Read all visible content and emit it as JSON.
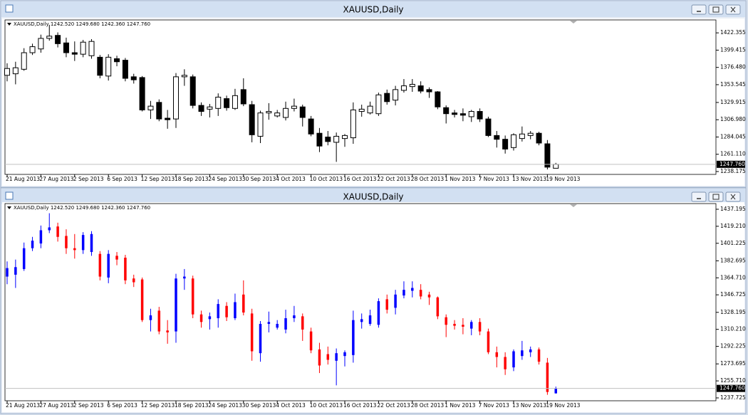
{
  "chart_data": [
    {
      "type": "candlestick",
      "title": "XAUUSD,Daily",
      "info": "XAUUSD,Daily  1242.520 1249.680 1242.360 1247.760",
      "up_color": "#ffffff",
      "down_color": "#000000",
      "categories": [
        "21 Aug 2013",
        null,
        null,
        null,
        "27 Aug 2013",
        null,
        null,
        null,
        "2 Sep 2013",
        null,
        null,
        null,
        "6 Sep 2013",
        null,
        null,
        null,
        "12 Sep 2013",
        null,
        null,
        null,
        "18 Sep 2013",
        null,
        null,
        null,
        "24 Sep 2013",
        null,
        null,
        null,
        "30 Sep 2013",
        null,
        null,
        null,
        "4 Oct 2013",
        null,
        null,
        null,
        "10 Oct 2013",
        null,
        null,
        null,
        "16 Oct 2013",
        null,
        null,
        null,
        "22 Oct 2013",
        null,
        null,
        null,
        "28 Oct 2013",
        null,
        null,
        null,
        "1 Nov 2013",
        null,
        null,
        null,
        "7 Nov 2013",
        null,
        null,
        null,
        "13 Nov 2013",
        null,
        null,
        null,
        "19 Nov 2013",
        null
      ],
      "open": [
        1366,
        1368,
        1374,
        1396,
        1401,
        1415,
        1419,
        1409,
        1396,
        1394,
        1392,
        1390,
        1365,
        1388,
        1386,
        1364,
        1363,
        1320,
        1330,
        1309,
        1308,
        1364,
        1364,
        1326,
        1321,
        1322,
        1335,
        1322,
        1347,
        1327,
        1285,
        1316,
        1312,
        1310,
        1322,
        1324,
        1308,
        1289,
        1284,
        1277,
        1282,
        1283,
        1318,
        1316,
        1315,
        1342,
        1333,
        1346,
        1351,
        1352,
        1347,
        1344,
        1323,
        1316,
        1315,
        1311,
        1318,
        1308,
        1286,
        1281,
        1270,
        1282,
        1286,
        1289,
        1275,
        1242.52
      ],
      "high": [
        1382,
        1384,
        1402,
        1408,
        1420,
        1433,
        1423,
        1416,
        1411,
        1413,
        1414,
        1393,
        1394,
        1392,
        1389,
        1368,
        1365,
        1332,
        1334,
        1320,
        1369,
        1374,
        1367,
        1330,
        1328,
        1342,
        1339,
        1348,
        1362,
        1332,
        1319,
        1329,
        1320,
        1331,
        1335,
        1327,
        1312,
        1296,
        1292,
        1290,
        1288,
        1330,
        1327,
        1331,
        1343,
        1347,
        1352,
        1361,
        1361,
        1358,
        1350,
        1345,
        1326,
        1320,
        1322,
        1320,
        1322,
        1311,
        1292,
        1286,
        1289,
        1298,
        1292,
        1291,
        1280,
        1249.68
      ],
      "low": [
        1358,
        1354,
        1372,
        1393,
        1396,
        1412,
        1403,
        1390,
        1385,
        1390,
        1388,
        1362,
        1359,
        1378,
        1358,
        1355,
        1318,
        1308,
        1305,
        1295,
        1296,
        1352,
        1322,
        1312,
        1310,
        1312,
        1319,
        1320,
        1325,
        1277,
        1276,
        1307,
        1310,
        1306,
        1318,
        1298,
        1285,
        1264,
        1273,
        1251,
        1271,
        1275,
        1311,
        1314,
        1312,
        1327,
        1326,
        1343,
        1344,
        1342,
        1336,
        1321,
        1302,
        1310,
        1305,
        1304,
        1304,
        1284,
        1270,
        1262,
        1266,
        1278,
        1281,
        1273,
        1241,
        1242.36
      ],
      "close": [
        1375,
        1376,
        1396,
        1404,
        1415,
        1418,
        1408,
        1396,
        1394,
        1410,
        1411,
        1366,
        1390,
        1384,
        1362,
        1360,
        1320,
        1325,
        1308,
        1307,
        1364,
        1366,
        1326,
        1318,
        1324,
        1337,
        1323,
        1339,
        1328,
        1287,
        1316,
        1318,
        1316,
        1322,
        1325,
        1310,
        1288,
        1272,
        1278,
        1285,
        1286,
        1320,
        1321,
        1325,
        1340,
        1331,
        1347,
        1352,
        1354,
        1345,
        1344,
        1324,
        1315,
        1314,
        1313,
        1318,
        1308,
        1286,
        1281,
        1268,
        1287,
        1288,
        1289,
        1276,
        1244,
        1247.76
      ],
      "ylim": [
        1234.36,
        1439.53
      ],
      "yticks": [
        1422.355,
        1399.415,
        {
          "value": 1376.48,
          "label": "1376.480"
        },
        1353.545,
        1329.915,
        {
          "value": 1306.98,
          "label": "1306.980"
        },
        1284.045,
        {
          "value": 1261.11,
          "label": "1261.110"
        },
        1238.175
      ],
      "last_price": {
        "value": 1247.76,
        "label": "1247.760"
      }
    },
    {
      "type": "ohlc",
      "title": "XAUUSD,Daily",
      "info": "XAUUSD,Daily  1242.520 1249.680 1242.360 1247.760",
      "up_color": "#0000ff",
      "down_color": "#ff0000",
      "categories": [
        "21 Aug 2013",
        null,
        null,
        null,
        "27 Aug 2013",
        null,
        null,
        null,
        "2 Sep 2013",
        null,
        null,
        null,
        "6 Sep 2013",
        null,
        null,
        null,
        "12 Sep 2013",
        null,
        null,
        null,
        "18 Sep 2013",
        null,
        null,
        null,
        "24 Sep 2013",
        null,
        null,
        null,
        "30 Sep 2013",
        null,
        null,
        null,
        "4 Oct 2013",
        null,
        null,
        null,
        "10 Oct 2013",
        null,
        null,
        null,
        "16 Oct 2013",
        null,
        null,
        null,
        "22 Oct 2013",
        null,
        null,
        null,
        "28 Oct 2013",
        null,
        null,
        null,
        "1 Nov 2013",
        null,
        null,
        null,
        "7 Nov 2013",
        null,
        null,
        null,
        "13 Nov 2013",
        null,
        null,
        null,
        "19 Nov 2013",
        null
      ],
      "open": [
        1366,
        1368,
        1374,
        1396,
        1401,
        1415,
        1419,
        1409,
        1396,
        1394,
        1392,
        1390,
        1365,
        1388,
        1386,
        1364,
        1363,
        1320,
        1330,
        1309,
        1308,
        1364,
        1364,
        1326,
        1321,
        1322,
        1335,
        1322,
        1347,
        1327,
        1285,
        1316,
        1312,
        1310,
        1322,
        1324,
        1308,
        1289,
        1284,
        1277,
        1282,
        1283,
        1318,
        1316,
        1315,
        1342,
        1333,
        1346,
        1351,
        1352,
        1347,
        1344,
        1323,
        1316,
        1315,
        1311,
        1318,
        1308,
        1286,
        1281,
        1270,
        1282,
        1286,
        1289,
        1275,
        1242.52
      ],
      "high": [
        1382,
        1384,
        1402,
        1408,
        1420,
        1433,
        1423,
        1416,
        1411,
        1413,
        1414,
        1393,
        1394,
        1392,
        1389,
        1368,
        1365,
        1332,
        1334,
        1320,
        1369,
        1374,
        1367,
        1330,
        1328,
        1342,
        1339,
        1348,
        1362,
        1332,
        1319,
        1329,
        1320,
        1331,
        1335,
        1327,
        1312,
        1296,
        1292,
        1290,
        1288,
        1330,
        1327,
        1331,
        1343,
        1347,
        1352,
        1361,
        1361,
        1358,
        1350,
        1345,
        1326,
        1320,
        1322,
        1320,
        1322,
        1311,
        1292,
        1286,
        1289,
        1298,
        1292,
        1291,
        1280,
        1249.68
      ],
      "low": [
        1358,
        1354,
        1372,
        1393,
        1396,
        1412,
        1403,
        1390,
        1385,
        1390,
        1388,
        1362,
        1359,
        1378,
        1358,
        1355,
        1318,
        1308,
        1305,
        1295,
        1296,
        1352,
        1322,
        1312,
        1310,
        1312,
        1319,
        1320,
        1325,
        1277,
        1276,
        1307,
        1310,
        1306,
        1318,
        1298,
        1285,
        1264,
        1273,
        1251,
        1271,
        1275,
        1311,
        1314,
        1312,
        1327,
        1326,
        1343,
        1344,
        1342,
        1336,
        1321,
        1302,
        1310,
        1305,
        1304,
        1304,
        1284,
        1270,
        1262,
        1266,
        1278,
        1281,
        1273,
        1241,
        1242.36
      ],
      "close": [
        1375,
        1376,
        1396,
        1404,
        1415,
        1418,
        1408,
        1396,
        1394,
        1410,
        1411,
        1366,
        1390,
        1384,
        1362,
        1360,
        1320,
        1325,
        1308,
        1307,
        1364,
        1366,
        1326,
        1318,
        1324,
        1337,
        1323,
        1339,
        1328,
        1287,
        1316,
        1318,
        1316,
        1322,
        1325,
        1310,
        1288,
        1272,
        1278,
        1285,
        1286,
        1320,
        1321,
        1325,
        1340,
        1331,
        1347,
        1352,
        1354,
        1345,
        1344,
        1324,
        1315,
        1314,
        1313,
        1318,
        1308,
        1286,
        1281,
        1268,
        1287,
        1288,
        1289,
        1276,
        1244,
        1247.76
      ],
      "ylim": [
        1234.7,
        1443.2
      ],
      "yticks": [
        1437.195,
        {
          "value": 1419.21,
          "label": "1419.210"
        },
        1401.225,
        1382.695,
        {
          "value": 1364.71,
          "label": "1364.710"
        },
        1346.725,
        1328.195,
        {
          "value": 1310.21,
          "label": "1310.210"
        },
        1292.225,
        1273.695,
        {
          "value": 1255.71,
          "label": "1255.710"
        },
        1237.725
      ],
      "last_price": {
        "value": 1247.76,
        "label": "1247.760"
      }
    }
  ]
}
